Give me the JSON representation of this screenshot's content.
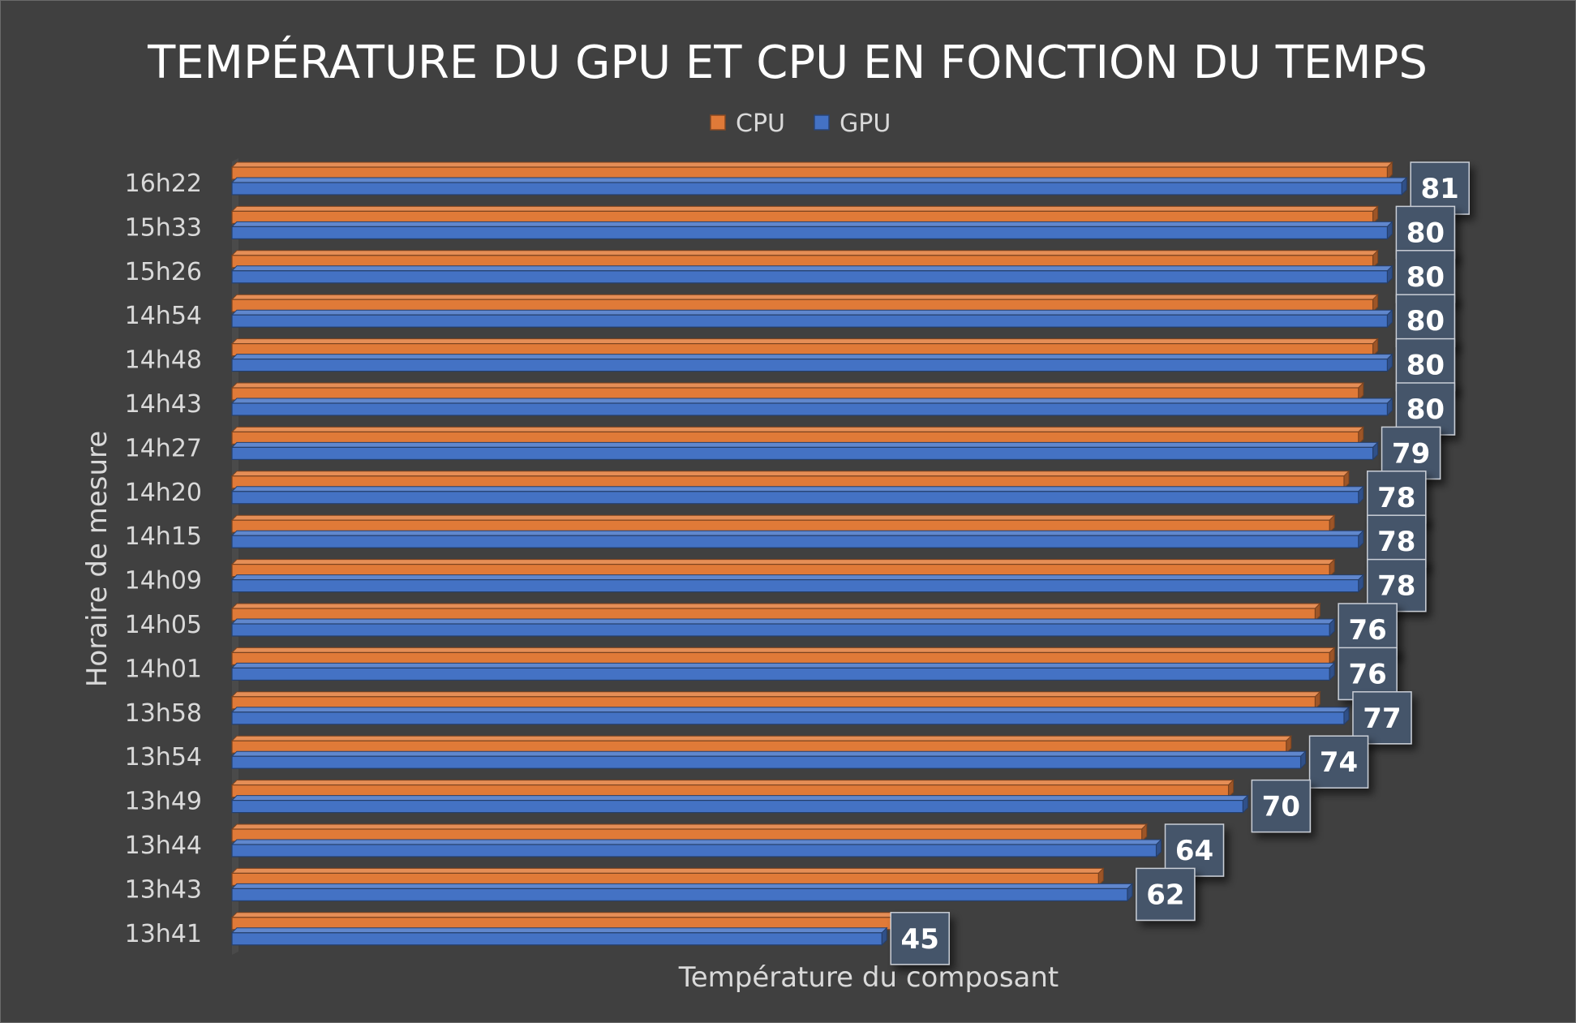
{
  "chart_data": {
    "type": "bar",
    "orientation": "horizontal",
    "title": "TEMPÉRATURE DU GPU ET CPU EN FONCTION DU TEMPS",
    "xlabel": "Température du composant",
    "ylabel": "Horaire de mesure",
    "xlim": [
      0,
      82
    ],
    "legend_position": "top",
    "grid": false,
    "categories": [
      "16h22",
      "15h33",
      "15h26",
      "14h54",
      "14h48",
      "14h43",
      "14h27",
      "14h20",
      "14h15",
      "14h09",
      "14h05",
      "14h01",
      "13h58",
      "13h54",
      "13h49",
      "13h44",
      "13h43",
      "13h41"
    ],
    "series": [
      {
        "name": "CPU",
        "color": "#e07a38",
        "values": [
          80,
          79,
          79,
          79,
          79,
          78,
          78,
          77,
          76,
          76,
          75,
          76,
          75,
          73,
          69,
          63,
          60,
          47
        ],
        "labels_shown": false
      },
      {
        "name": "GPU",
        "color": "#4472c4",
        "values": [
          81,
          80,
          80,
          80,
          80,
          80,
          79,
          78,
          78,
          78,
          76,
          76,
          77,
          74,
          70,
          64,
          62,
          45
        ],
        "labels_shown": true
      }
    ]
  }
}
